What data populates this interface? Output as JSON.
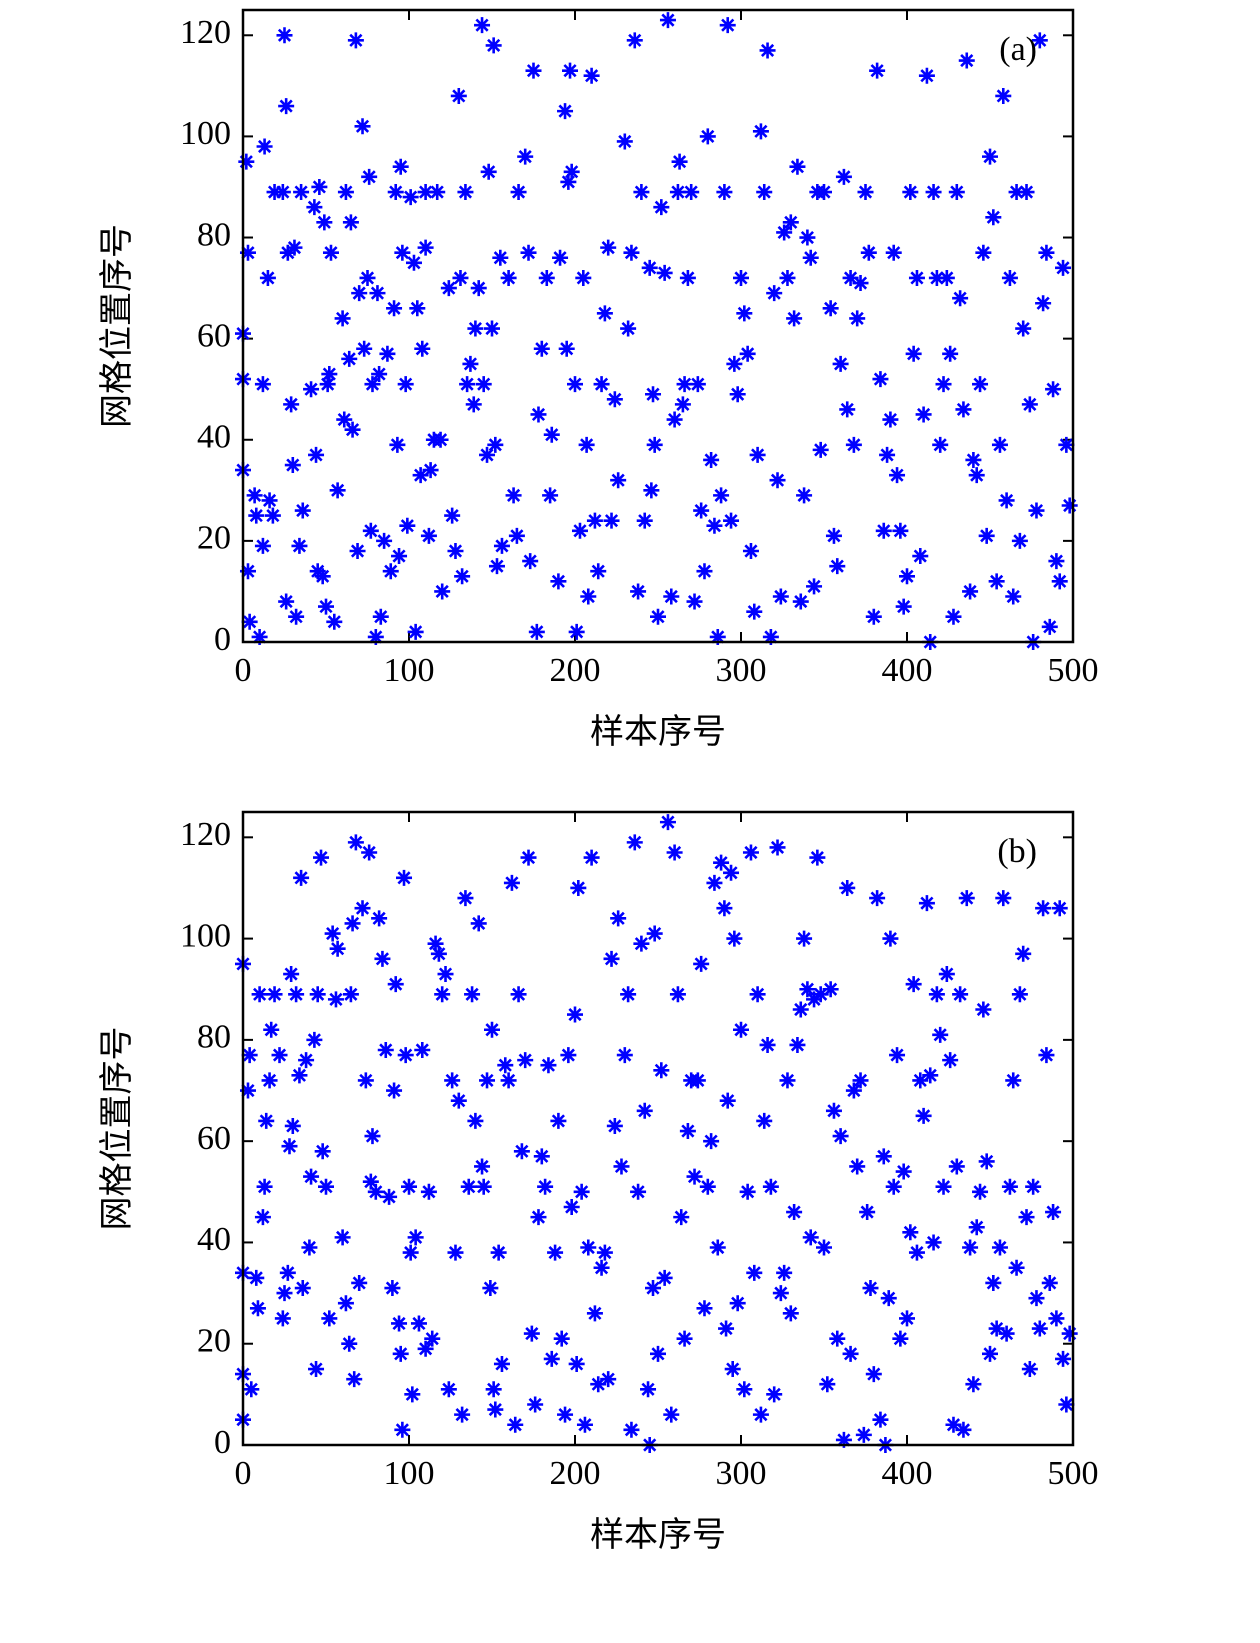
{
  "chart_data": [
    {
      "type": "scatter",
      "annotation": "(a)",
      "xlabel": "样本序号",
      "ylabel": "网格位置序号",
      "color": "#0000ff",
      "grid": false,
      "xlim": [
        0,
        500
      ],
      "ylim": [
        0,
        125
      ],
      "xticks": [
        0,
        100,
        200,
        300,
        400,
        500
      ],
      "yticks": [
        0,
        20,
        40,
        60,
        80,
        100,
        120
      ],
      "x": [
        0,
        0,
        0,
        2,
        3,
        3,
        4,
        7,
        8,
        10,
        12,
        12,
        13,
        15,
        16,
        18,
        19,
        24,
        25,
        26,
        26,
        27,
        29,
        30,
        31,
        32,
        34,
        35,
        36,
        41,
        43,
        44,
        45,
        46,
        48,
        49,
        50,
        51,
        52,
        53,
        55,
        57,
        60,
        61,
        62,
        64,
        65,
        66,
        68,
        69,
        70,
        72,
        73,
        75,
        76,
        77,
        78,
        80,
        81,
        82,
        83,
        85,
        87,
        89,
        91,
        92,
        93,
        94,
        95,
        96,
        98,
        99,
        101,
        103,
        104,
        105,
        107,
        108,
        110,
        110,
        112,
        113,
        115,
        117,
        119,
        120,
        124,
        126,
        128,
        130,
        131,
        132,
        134,
        135,
        137,
        139,
        140,
        142,
        144,
        145,
        147,
        148,
        150,
        151,
        152,
        153,
        155,
        156,
        160,
        163,
        165,
        166,
        170,
        172,
        173,
        175,
        177,
        178,
        180,
        183,
        185,
        186,
        190,
        191,
        194,
        195,
        196,
        197,
        198,
        200,
        201,
        203,
        205,
        207,
        208,
        210,
        212,
        214,
        216,
        218,
        220,
        222,
        224,
        226,
        230,
        232,
        234,
        236,
        238,
        240,
        242,
        245,
        246,
        247,
        248,
        250,
        252,
        254,
        256,
        258,
        260,
        262,
        263,
        265,
        266,
        268,
        270,
        272,
        274,
        276,
        278,
        280,
        282,
        284,
        286,
        288,
        290,
        292,
        294,
        296,
        298,
        300,
        302,
        304,
        306,
        308,
        310,
        312,
        314,
        316,
        318,
        320,
        322,
        324,
        326,
        328,
        330,
        332,
        334,
        336,
        338,
        340,
        342,
        344,
        346,
        348,
        350,
        354,
        356,
        358,
        360,
        362,
        364,
        366,
        368,
        370,
        372,
        375,
        377,
        380,
        382,
        384,
        386,
        388,
        390,
        392,
        394,
        396,
        398,
        400,
        402,
        404,
        406,
        408,
        410,
        412,
        414,
        416,
        418,
        420,
        422,
        424,
        426,
        428,
        430,
        432,
        434,
        436,
        438,
        440,
        442,
        444,
        446,
        448,
        450,
        452,
        454,
        456,
        458,
        460,
        462,
        464,
        466,
        468,
        470,
        472,
        474,
        476,
        478,
        480,
        482,
        484,
        486,
        488,
        490,
        492,
        494,
        496,
        498
      ],
      "values": [
        61,
        52,
        34,
        95,
        77,
        14,
        4,
        29,
        25,
        1,
        19,
        51,
        98,
        72,
        28,
        25,
        89,
        89,
        120,
        106,
        8,
        77,
        47,
        35,
        78,
        5,
        19,
        89,
        26,
        50,
        86,
        37,
        14,
        90,
        13,
        83,
        7,
        51,
        53,
        77,
        4,
        30,
        64,
        44,
        89,
        56,
        83,
        42,
        119,
        18,
        69,
        102,
        58,
        72,
        92,
        22,
        51,
        1,
        69,
        53,
        5,
        20,
        57,
        14,
        66,
        89,
        39,
        17,
        94,
        77,
        51,
        23,
        88,
        75,
        2,
        66,
        33,
        58,
        78,
        89,
        21,
        34,
        40,
        89,
        40,
        10,
        70,
        25,
        18,
        108,
        72,
        13,
        89,
        51,
        55,
        47,
        62,
        70,
        122,
        51,
        37,
        93,
        62,
        118,
        39,
        15,
        76,
        19,
        72,
        29,
        21,
        89,
        96,
        77,
        16,
        113,
        2,
        45,
        58,
        72,
        29,
        41,
        12,
        76,
        105,
        58,
        91,
        113,
        93,
        51,
        2,
        22,
        72,
        39,
        9,
        112,
        24,
        14,
        51,
        65,
        78,
        24,
        48,
        32,
        99,
        62,
        77,
        119,
        10,
        89,
        24,
        74,
        30,
        49,
        39,
        5,
        86,
        73,
        123,
        9,
        44,
        89,
        95,
        47,
        51,
        72,
        89,
        8,
        51,
        26,
        14,
        100,
        36,
        23,
        1,
        29,
        89,
        122,
        24,
        55,
        49,
        72,
        65,
        57,
        18,
        6,
        37,
        101,
        89,
        117,
        1,
        69,
        32,
        9,
        81,
        72,
        83,
        64,
        94,
        8,
        29,
        80,
        76,
        11,
        89,
        38,
        89,
        66,
        21,
        15,
        55,
        92,
        46,
        72,
        39,
        64,
        71,
        89,
        77,
        5,
        113,
        52,
        22,
        37,
        44,
        77,
        33,
        22,
        7,
        13,
        89,
        57,
        72,
        17,
        45,
        112,
        0,
        89,
        72,
        39,
        51,
        72,
        57,
        5,
        89,
        68,
        46,
        115,
        10,
        36,
        33,
        51,
        77,
        21,
        96,
        84,
        12,
        39,
        108,
        28,
        72,
        9,
        89,
        20,
        62,
        89,
        47,
        0,
        26,
        119,
        67,
        77,
        3,
        50,
        16,
        12,
        74,
        39,
        27
      ]
    },
    {
      "type": "scatter",
      "annotation": "(b)",
      "xlabel": "样本序号",
      "ylabel": "网格位置序号",
      "color": "#0000ff",
      "grid": false,
      "xlim": [
        0,
        500
      ],
      "ylim": [
        0,
        125
      ],
      "xticks": [
        0,
        100,
        200,
        300,
        400,
        500
      ],
      "yticks": [
        0,
        20,
        40,
        60,
        80,
        100,
        120
      ],
      "x": [
        0,
        0,
        0,
        0,
        3,
        4,
        5,
        8,
        9,
        10,
        12,
        13,
        14,
        16,
        17,
        19,
        22,
        24,
        25,
        27,
        28,
        29,
        30,
        32,
        34,
        35,
        36,
        38,
        40,
        41,
        43,
        44,
        45,
        47,
        48,
        50,
        52,
        54,
        56,
        57,
        60,
        62,
        64,
        65,
        66,
        67,
        68,
        70,
        72,
        74,
        76,
        77,
        78,
        80,
        82,
        84,
        86,
        88,
        90,
        91,
        92,
        94,
        95,
        96,
        97,
        98,
        100,
        101,
        102,
        104,
        106,
        108,
        110,
        112,
        114,
        116,
        118,
        120,
        122,
        124,
        126,
        128,
        130,
        132,
        134,
        136,
        138,
        140,
        142,
        144,
        145,
        147,
        149,
        150,
        151,
        152,
        154,
        156,
        158,
        160,
        162,
        164,
        166,
        168,
        170,
        172,
        174,
        176,
        178,
        180,
        182,
        184,
        186,
        188,
        190,
        192,
        194,
        196,
        198,
        200,
        201,
        202,
        204,
        206,
        208,
        210,
        212,
        214,
        216,
        218,
        220,
        222,
        224,
        226,
        228,
        230,
        232,
        234,
        236,
        238,
        240,
        242,
        244,
        245,
        247,
        248,
        250,
        252,
        254,
        256,
        258,
        260,
        262,
        264,
        266,
        268,
        270,
        272,
        274,
        276,
        278,
        280,
        282,
        284,
        286,
        288,
        290,
        291,
        292,
        294,
        295,
        296,
        298,
        300,
        302,
        304,
        306,
        308,
        310,
        312,
        314,
        316,
        318,
        320,
        322,
        324,
        326,
        328,
        330,
        332,
        334,
        336,
        338,
        340,
        342,
        344,
        346,
        348,
        350,
        352,
        354,
        356,
        358,
        360,
        362,
        364,
        366,
        368,
        370,
        372,
        374,
        376,
        378,
        380,
        382,
        384,
        386,
        387,
        389,
        390,
        392,
        394,
        396,
        398,
        400,
        402,
        404,
        406,
        408,
        410,
        412,
        414,
        416,
        418,
        420,
        422,
        424,
        426,
        428,
        430,
        432,
        434,
        436,
        438,
        440,
        442,
        444,
        446,
        448,
        450,
        452,
        454,
        456,
        458,
        460,
        462,
        464,
        466,
        468,
        470,
        472,
        474,
        476,
        478,
        480,
        482,
        484,
        486,
        488,
        490,
        492,
        494,
        496,
        498
      ],
      "values": [
        95,
        34,
        14,
        5,
        70,
        77,
        11,
        33,
        27,
        89,
        45,
        51,
        64,
        72,
        82,
        89,
        77,
        25,
        30,
        34,
        59,
        93,
        63,
        89,
        73,
        112,
        31,
        76,
        39,
        53,
        80,
        15,
        89,
        116,
        58,
        51,
        25,
        101,
        88,
        98,
        41,
        28,
        20,
        89,
        103,
        13,
        119,
        32,
        106,
        72,
        117,
        52,
        61,
        50,
        104,
        96,
        78,
        49,
        31,
        70,
        91,
        24,
        18,
        3,
        112,
        77,
        51,
        38,
        10,
        41,
        24,
        78,
        19,
        50,
        21,
        99,
        97,
        89,
        93,
        11,
        72,
        38,
        68,
        6,
        108,
        51,
        89,
        64,
        103,
        55,
        51,
        72,
        31,
        82,
        11,
        7,
        38,
        16,
        75,
        72,
        111,
        4,
        89,
        58,
        76,
        116,
        22,
        8,
        45,
        57,
        51,
        75,
        17,
        38,
        64,
        21,
        6,
        77,
        47,
        85,
        16,
        110,
        50,
        4,
        39,
        116,
        26,
        12,
        35,
        38,
        13,
        96,
        63,
        104,
        55,
        77,
        89,
        3,
        119,
        50,
        99,
        66,
        11,
        0,
        31,
        101,
        18,
        74,
        33,
        123,
        6,
        117,
        89,
        45,
        21,
        62,
        72,
        53,
        72,
        95,
        27,
        51,
        60,
        111,
        39,
        115,
        106,
        23,
        68,
        113,
        15,
        100,
        28,
        82,
        11,
        50,
        117,
        34,
        89,
        6,
        64,
        79,
        51,
        10,
        118,
        30,
        34,
        72,
        26,
        46,
        79,
        86,
        100,
        90,
        41,
        88,
        116,
        89,
        39,
        12,
        90,
        66,
        21,
        61,
        1,
        110,
        18,
        70,
        55,
        72,
        2,
        46,
        31,
        14,
        108,
        5,
        57,
        0,
        29,
        100,
        51,
        77,
        21,
        54,
        25,
        42,
        91,
        38,
        72,
        65,
        107,
        73,
        40,
        89,
        81,
        51,
        93,
        76,
        4,
        55,
        89,
        3,
        108,
        39,
        12,
        43,
        50,
        86,
        56,
        18,
        32,
        23,
        39,
        108,
        22,
        51,
        72,
        35,
        89,
        97,
        45,
        15,
        51,
        29,
        23,
        106,
        77,
        32,
        46,
        25,
        106,
        17,
        8,
        22
      ]
    }
  ]
}
